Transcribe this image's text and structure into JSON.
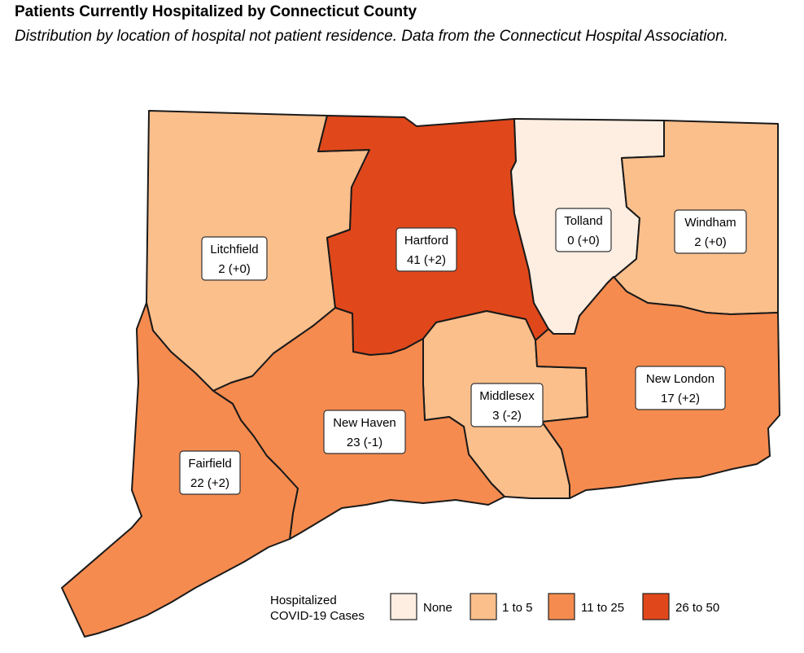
{
  "title": "Patients Currently Hospitalized by Connecticut County",
  "subtitle": "Distribution by location of hospital not patient residence. Data from the Connecticut Hospital Association.",
  "colors": {
    "none": "#fdeee1",
    "1to5": "#fbbf8c",
    "11to25": "#f68b4f",
    "26to50": "#e0481b"
  },
  "counties": [
    {
      "name": "Litchfield",
      "value": "2 (+0)",
      "bin": "1to5"
    },
    {
      "name": "Hartford",
      "value": "41 (+2)",
      "bin": "26to50"
    },
    {
      "name": "Tolland",
      "value": "0 (+0)",
      "bin": "none"
    },
    {
      "name": "Windham",
      "value": "2 (+0)",
      "bin": "1to5"
    },
    {
      "name": "Middlesex",
      "value": "3 (-2)",
      "bin": "1to5"
    },
    {
      "name": "New London",
      "value": "17 (+2)",
      "bin": "11to25"
    },
    {
      "name": "New Haven",
      "value": "23 (-1)",
      "bin": "11to25"
    },
    {
      "name": "Fairfield",
      "value": "22 (+2)",
      "bin": "11to25"
    }
  ],
  "legend": {
    "title_line1": "Hospitalized",
    "title_line2": "COVID-19 Cases",
    "items": [
      {
        "label": "None",
        "bin": "none"
      },
      {
        "label": "1 to 5",
        "bin": "1to5"
      },
      {
        "label": "11 to 25",
        "bin": "11to25"
      },
      {
        "label": "26 to 50",
        "bin": "26to50"
      }
    ]
  }
}
